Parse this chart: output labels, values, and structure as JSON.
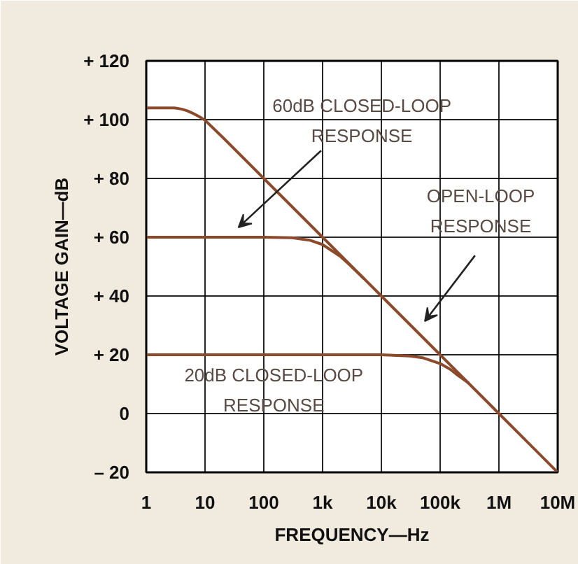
{
  "chart_data": {
    "type": "line",
    "xlabel": "FREQUENCY—Hz",
    "ylabel": "VOLTAGE GAIN—dB",
    "log": "x",
    "grid": true,
    "line_style": "solid",
    "xlim": [
      1,
      10000000
    ],
    "ylim": [
      -20,
      120
    ],
    "xticks": [
      1,
      10,
      100,
      {
        "value": 1000,
        "label": "1k"
      },
      {
        "value": 10000,
        "label": "10k"
      },
      {
        "value": 100000,
        "label": "100k"
      },
      {
        "value": 1000000,
        "label": "1M"
      },
      {
        "value": 10000000,
        "label": "10M"
      }
    ],
    "yticks": [
      {
        "value": 120,
        "label": "+ 120"
      },
      {
        "value": 100,
        "label": "+ 100"
      },
      {
        "value": 80,
        "label": "+ 80"
      },
      {
        "value": 60,
        "label": "+ 60"
      },
      {
        "value": 40,
        "label": "+ 40"
      },
      {
        "value": 20,
        "label": "+ 20"
      },
      0,
      {
        "value": -20,
        "label": "– 20"
      }
    ],
    "series": [
      {
        "color": "#8b4a2b",
        "x": [
          1,
          3,
          4,
          5,
          6,
          8,
          10,
          20,
          100,
          1000,
          10000,
          100000,
          1000000,
          10000000
        ],
        "values": [
          104,
          104,
          103.6,
          103,
          102.3,
          101,
          99.8,
          94,
          80,
          60,
          40,
          20,
          0,
          -20
        ]
      },
      {
        "color": "#8b4a2b",
        "x": [
          1,
          100,
          300,
          600,
          1000,
          2000,
          3000,
          5000
        ],
        "values": [
          60,
          60,
          59.8,
          59,
          57.5,
          53.5,
          50.3,
          46
        ]
      },
      {
        "color": "#8b4a2b",
        "x": [
          1,
          10000,
          30000,
          50000,
          100000,
          150000,
          200000,
          300000
        ],
        "values": [
          20,
          20,
          19.6,
          19,
          17,
          15,
          13,
          10.5
        ]
      }
    ],
    "annotations": [
      "60dB CLOSED-LOOP\nRESPONSE",
      "OPEN-LOOP\nRESPONSE",
      "20dB CLOSED-LOOP\nRESPONSE"
    ]
  }
}
